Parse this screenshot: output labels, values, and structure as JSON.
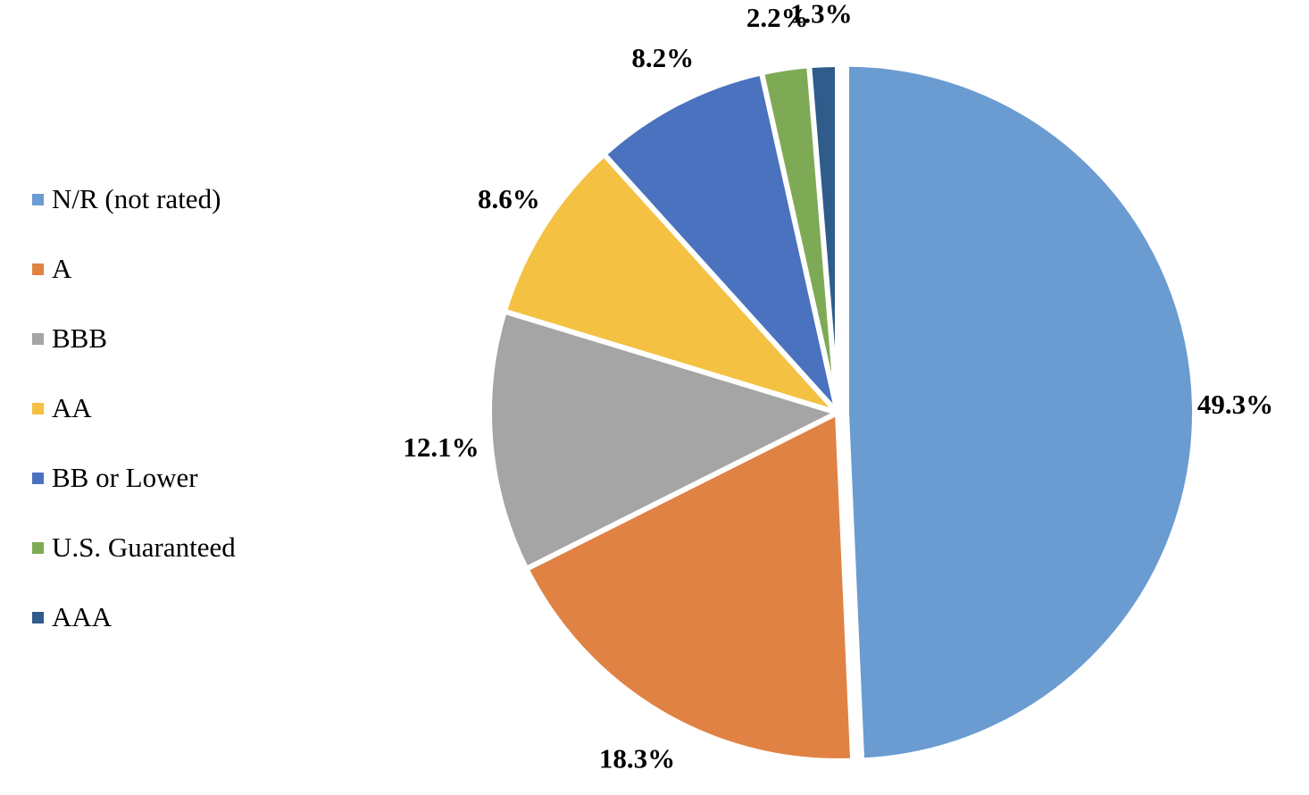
{
  "chart_data": {
    "type": "pie",
    "title": "",
    "start_angle_deg": 0,
    "direction": "clockwise",
    "legend_position": "left",
    "slices": [
      {
        "label": "N/R (not rated)",
        "value": 49.3,
        "display": "49.3%",
        "color": "#6A9BD1"
      },
      {
        "label": "A",
        "value": 18.3,
        "display": "18.3%",
        "color": "#E08244"
      },
      {
        "label": "BBB",
        "value": 12.1,
        "display": "12.1%",
        "color": "#A5A5A5"
      },
      {
        "label": "AA",
        "value": 8.6,
        "display": "8.6%",
        "color": "#F5C143"
      },
      {
        "label": "BB or Lower",
        "value": 8.2,
        "display": "8.2%",
        "color": "#4A72BE"
      },
      {
        "label": "U.S. Guaranteed",
        "value": 2.2,
        "display": "2.2%",
        "color": "#7EAA55"
      },
      {
        "label": "AAA",
        "value": 1.3,
        "display": "1.3%",
        "color": "#2F5C8A"
      }
    ]
  }
}
